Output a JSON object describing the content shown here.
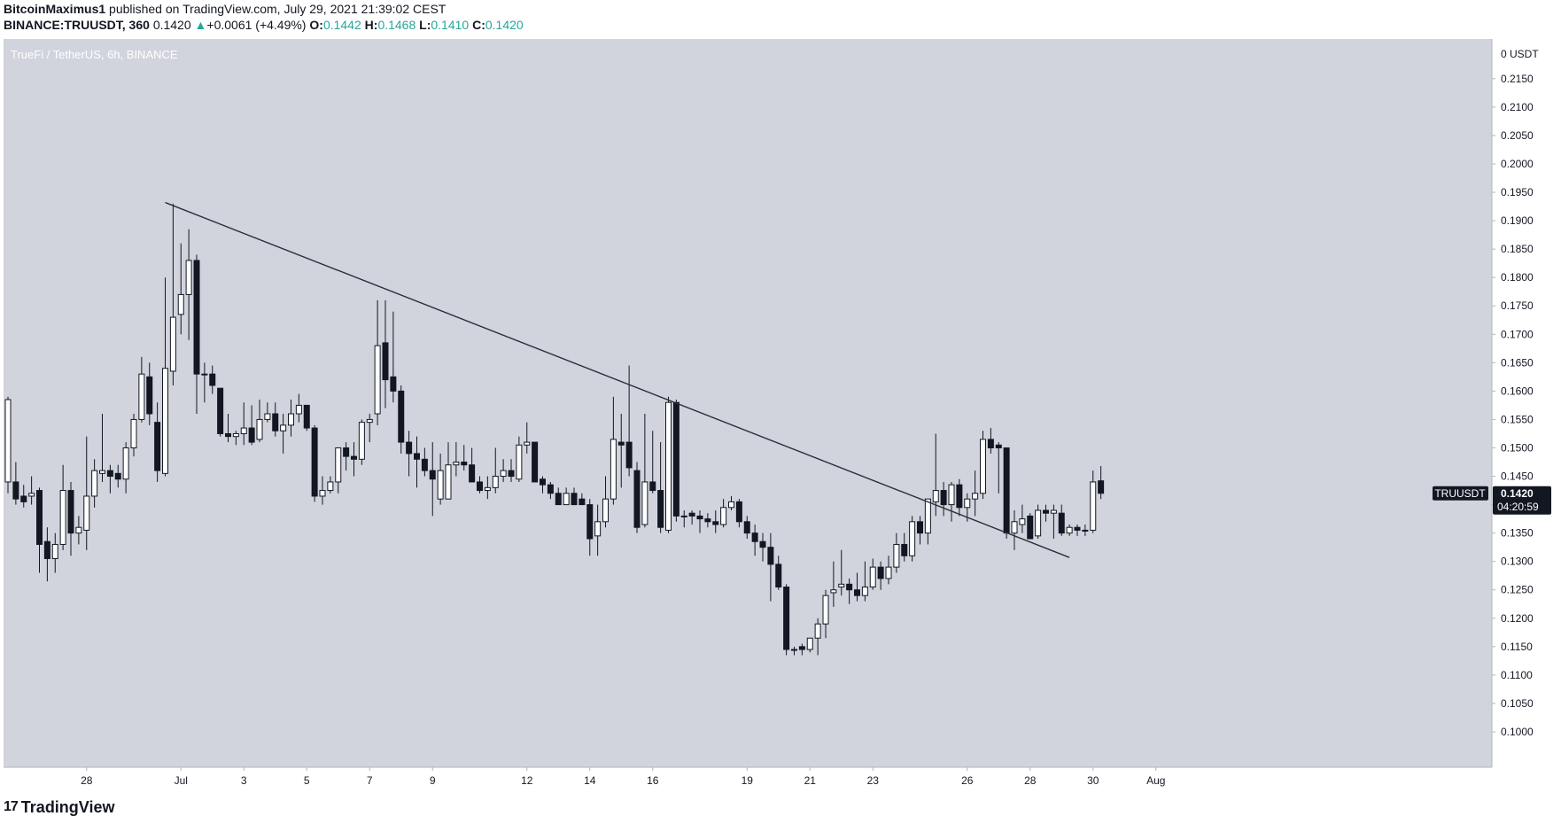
{
  "header": {
    "author": "BitcoinMaximus1",
    "published": "published on TradingView.com, July 29, 2021 21:39:02 CEST"
  },
  "symbol_line": {
    "symbol": "BINANCE:TRUUSDT, 360",
    "last": "0.1420",
    "change_arrow": "▲",
    "change": "+0.0061 (+4.49%)",
    "open_label": "O:",
    "open": "0.1442",
    "high_label": "H:",
    "high": "0.1468",
    "low_label": "L:",
    "low": "0.1410",
    "close_label": "C:",
    "close": "0.1420"
  },
  "brand": {
    "logo_text": "17",
    "name": "TradingView"
  },
  "colors": {
    "background": "#d1d4dc",
    "up_body": "#ffffff",
    "down_body": "#131722",
    "wick": "#131722",
    "trendline": "#2a2e39",
    "up_text": "#26a69a",
    "price_tag": "#131722"
  },
  "chart_data": {
    "type": "candlestick",
    "title": "TrueFi / TetherUS, 6h, BINANCE",
    "price_axis_header": "0 USDT",
    "ylim": [
      0.0975,
      0.2195
    ],
    "y_ticks": [
      "0.2150",
      "0.2100",
      "0.2050",
      "0.2000",
      "0.1950",
      "0.1900",
      "0.1850",
      "0.1800",
      "0.1750",
      "0.1700",
      "0.1650",
      "0.1600",
      "0.1550",
      "0.1500",
      "0.1450",
      "0.1400",
      "0.1350",
      "0.1300",
      "0.1250",
      "0.1200",
      "0.1150",
      "0.1100",
      "0.1050",
      "0.1000"
    ],
    "x_ticks": [
      {
        "label": "28",
        "date": "2021-06-28"
      },
      {
        "label": "Jul",
        "date": "2021-07-01"
      },
      {
        "label": "3",
        "date": "2021-07-03"
      },
      {
        "label": "5",
        "date": "2021-07-05"
      },
      {
        "label": "7",
        "date": "2021-07-07"
      },
      {
        "label": "9",
        "date": "2021-07-09"
      },
      {
        "label": "12",
        "date": "2021-07-12"
      },
      {
        "label": "14",
        "date": "2021-07-14"
      },
      {
        "label": "16",
        "date": "2021-07-16"
      },
      {
        "label": "19",
        "date": "2021-07-19"
      },
      {
        "label": "21",
        "date": "2021-07-21"
      },
      {
        "label": "23",
        "date": "2021-07-23"
      },
      {
        "label": "26",
        "date": "2021-07-26"
      },
      {
        "label": "28",
        "date": "2021-07-28"
      },
      {
        "label": "30",
        "date": "2021-07-30"
      },
      {
        "label": "Aug",
        "date": "2021-08-01"
      }
    ],
    "last_price": {
      "symbol": "TRUUSDT",
      "value": "0.1420",
      "countdown": "04:20:59"
    },
    "trendline": [
      {
        "x": "2021-06-30 12:00",
        "y": 0.1932
      },
      {
        "x": "2021-07-29 06:00",
        "y": 0.1307
      }
    ],
    "candles": [
      {
        "o": 0.144,
        "h": 0.159,
        "l": 0.142,
        "c": 0.1585
      },
      {
        "o": 0.144,
        "h": 0.1475,
        "l": 0.14,
        "c": 0.141
      },
      {
        "o": 0.1415,
        "h": 0.1435,
        "l": 0.1395,
        "c": 0.1405
      },
      {
        "o": 0.1415,
        "h": 0.145,
        "l": 0.14,
        "c": 0.142
      },
      {
        "o": 0.1425,
        "h": 0.143,
        "l": 0.128,
        "c": 0.133
      },
      {
        "o": 0.1335,
        "h": 0.136,
        "l": 0.1265,
        "c": 0.1305
      },
      {
        "o": 0.1305,
        "h": 0.135,
        "l": 0.128,
        "c": 0.133
      },
      {
        "o": 0.133,
        "h": 0.147,
        "l": 0.132,
        "c": 0.1425
      },
      {
        "o": 0.1425,
        "h": 0.144,
        "l": 0.131,
        "c": 0.135
      },
      {
        "o": 0.135,
        "h": 0.138,
        "l": 0.133,
        "c": 0.136
      },
      {
        "o": 0.1355,
        "h": 0.152,
        "l": 0.132,
        "c": 0.1415
      },
      {
        "o": 0.1415,
        "h": 0.148,
        "l": 0.1395,
        "c": 0.146
      },
      {
        "o": 0.1455,
        "h": 0.156,
        "l": 0.144,
        "c": 0.146
      },
      {
        "o": 0.146,
        "h": 0.147,
        "l": 0.142,
        "c": 0.145
      },
      {
        "o": 0.1455,
        "h": 0.147,
        "l": 0.143,
        "c": 0.1445
      },
      {
        "o": 0.1445,
        "h": 0.151,
        "l": 0.142,
        "c": 0.15
      },
      {
        "o": 0.15,
        "h": 0.156,
        "l": 0.1485,
        "c": 0.155
      },
      {
        "o": 0.155,
        "h": 0.166,
        "l": 0.1545,
        "c": 0.163
      },
      {
        "o": 0.1625,
        "h": 0.165,
        "l": 0.154,
        "c": 0.156
      },
      {
        "o": 0.1545,
        "h": 0.158,
        "l": 0.144,
        "c": 0.146
      },
      {
        "o": 0.1455,
        "h": 0.18,
        "l": 0.145,
        "c": 0.164
      },
      {
        "o": 0.1635,
        "h": 0.193,
        "l": 0.161,
        "c": 0.173
      },
      {
        "o": 0.1735,
        "h": 0.186,
        "l": 0.17,
        "c": 0.177
      },
      {
        "o": 0.177,
        "h": 0.1885,
        "l": 0.169,
        "c": 0.183
      },
      {
        "o": 0.183,
        "h": 0.184,
        "l": 0.156,
        "c": 0.163
      },
      {
        "o": 0.163,
        "h": 0.165,
        "l": 0.158,
        "c": 0.163
      },
      {
        "o": 0.163,
        "h": 0.1645,
        "l": 0.1595,
        "c": 0.161
      },
      {
        "o": 0.1605,
        "h": 0.1605,
        "l": 0.152,
        "c": 0.1525
      },
      {
        "o": 0.1525,
        "h": 0.156,
        "l": 0.151,
        "c": 0.152
      },
      {
        "o": 0.152,
        "h": 0.153,
        "l": 0.1505,
        "c": 0.1525
      },
      {
        "o": 0.1525,
        "h": 0.158,
        "l": 0.1505,
        "c": 0.1535
      },
      {
        "o": 0.1535,
        "h": 0.1575,
        "l": 0.1505,
        "c": 0.151
      },
      {
        "o": 0.1515,
        "h": 0.1585,
        "l": 0.151,
        "c": 0.155
      },
      {
        "o": 0.155,
        "h": 0.158,
        "l": 0.1545,
        "c": 0.156
      },
      {
        "o": 0.156,
        "h": 0.158,
        "l": 0.152,
        "c": 0.153
      },
      {
        "o": 0.153,
        "h": 0.156,
        "l": 0.149,
        "c": 0.154
      },
      {
        "o": 0.154,
        "h": 0.1585,
        "l": 0.152,
        "c": 0.156
      },
      {
        "o": 0.156,
        "h": 0.1595,
        "l": 0.1545,
        "c": 0.1575
      },
      {
        "o": 0.1575,
        "h": 0.1575,
        "l": 0.153,
        "c": 0.1535
      },
      {
        "o": 0.1535,
        "h": 0.154,
        "l": 0.1405,
        "c": 0.1415
      },
      {
        "o": 0.1415,
        "h": 0.145,
        "l": 0.14,
        "c": 0.1425
      },
      {
        "o": 0.1425,
        "h": 0.145,
        "l": 0.142,
        "c": 0.144
      },
      {
        "o": 0.144,
        "h": 0.15,
        "l": 0.142,
        "c": 0.15
      },
      {
        "o": 0.15,
        "h": 0.151,
        "l": 0.146,
        "c": 0.1485
      },
      {
        "o": 0.1485,
        "h": 0.151,
        "l": 0.145,
        "c": 0.148
      },
      {
        "o": 0.148,
        "h": 0.155,
        "l": 0.147,
        "c": 0.1545
      },
      {
        "o": 0.1545,
        "h": 0.156,
        "l": 0.151,
        "c": 0.155
      },
      {
        "o": 0.156,
        "h": 0.176,
        "l": 0.154,
        "c": 0.168
      },
      {
        "o": 0.1685,
        "h": 0.176,
        "l": 0.157,
        "c": 0.162
      },
      {
        "o": 0.1625,
        "h": 0.174,
        "l": 0.158,
        "c": 0.16
      },
      {
        "o": 0.16,
        "h": 0.161,
        "l": 0.149,
        "c": 0.151
      },
      {
        "o": 0.151,
        "h": 0.153,
        "l": 0.145,
        "c": 0.149
      },
      {
        "o": 0.149,
        "h": 0.152,
        "l": 0.143,
        "c": 0.148
      },
      {
        "o": 0.148,
        "h": 0.15,
        "l": 0.145,
        "c": 0.146
      },
      {
        "o": 0.146,
        "h": 0.151,
        "l": 0.138,
        "c": 0.1445
      },
      {
        "o": 0.141,
        "h": 0.149,
        "l": 0.14,
        "c": 0.146
      },
      {
        "o": 0.141,
        "h": 0.151,
        "l": 0.141,
        "c": 0.147
      },
      {
        "o": 0.147,
        "h": 0.151,
        "l": 0.145,
        "c": 0.1475
      },
      {
        "o": 0.1475,
        "h": 0.1505,
        "l": 0.146,
        "c": 0.147
      },
      {
        "o": 0.147,
        "h": 0.15,
        "l": 0.144,
        "c": 0.144
      },
      {
        "o": 0.144,
        "h": 0.145,
        "l": 0.142,
        "c": 0.1425
      },
      {
        "o": 0.1425,
        "h": 0.145,
        "l": 0.141,
        "c": 0.143
      },
      {
        "o": 0.143,
        "h": 0.15,
        "l": 0.142,
        "c": 0.145
      },
      {
        "o": 0.145,
        "h": 0.148,
        "l": 0.144,
        "c": 0.146
      },
      {
        "o": 0.146,
        "h": 0.148,
        "l": 0.144,
        "c": 0.145
      },
      {
        "o": 0.1445,
        "h": 0.152,
        "l": 0.144,
        "c": 0.1505
      },
      {
        "o": 0.1505,
        "h": 0.1545,
        "l": 0.149,
        "c": 0.151
      },
      {
        "o": 0.151,
        "h": 0.151,
        "l": 0.144,
        "c": 0.144
      },
      {
        "o": 0.1445,
        "h": 0.145,
        "l": 0.142,
        "c": 0.1435
      },
      {
        "o": 0.1435,
        "h": 0.144,
        "l": 0.141,
        "c": 0.142
      },
      {
        "o": 0.142,
        "h": 0.143,
        "l": 0.14,
        "c": 0.14
      },
      {
        "o": 0.14,
        "h": 0.143,
        "l": 0.14,
        "c": 0.142
      },
      {
        "o": 0.142,
        "h": 0.143,
        "l": 0.14,
        "c": 0.14
      },
      {
        "o": 0.141,
        "h": 0.142,
        "l": 0.14,
        "c": 0.14
      },
      {
        "o": 0.14,
        "h": 0.141,
        "l": 0.131,
        "c": 0.134
      },
      {
        "o": 0.1345,
        "h": 0.14,
        "l": 0.131,
        "c": 0.137
      },
      {
        "o": 0.137,
        "h": 0.145,
        "l": 0.136,
        "c": 0.141
      },
      {
        "o": 0.141,
        "h": 0.159,
        "l": 0.14,
        "c": 0.1515
      },
      {
        "o": 0.151,
        "h": 0.156,
        "l": 0.143,
        "c": 0.1505
      },
      {
        "o": 0.151,
        "h": 0.1645,
        "l": 0.145,
        "c": 0.1465
      },
      {
        "o": 0.146,
        "h": 0.1475,
        "l": 0.135,
        "c": 0.136
      },
      {
        "o": 0.1365,
        "h": 0.156,
        "l": 0.136,
        "c": 0.144
      },
      {
        "o": 0.144,
        "h": 0.153,
        "l": 0.142,
        "c": 0.1425
      },
      {
        "o": 0.1425,
        "h": 0.151,
        "l": 0.135,
        "c": 0.136
      },
      {
        "o": 0.1355,
        "h": 0.159,
        "l": 0.135,
        "c": 0.158
      },
      {
        "o": 0.158,
        "h": 0.1585,
        "l": 0.137,
        "c": 0.138
      },
      {
        "o": 0.138,
        "h": 0.139,
        "l": 0.136,
        "c": 0.138
      },
      {
        "o": 0.1385,
        "h": 0.139,
        "l": 0.1365,
        "c": 0.138
      },
      {
        "o": 0.138,
        "h": 0.139,
        "l": 0.135,
        "c": 0.1375
      },
      {
        "o": 0.1375,
        "h": 0.1385,
        "l": 0.136,
        "c": 0.137
      },
      {
        "o": 0.137,
        "h": 0.139,
        "l": 0.135,
        "c": 0.1365
      },
      {
        "o": 0.1365,
        "h": 0.141,
        "l": 0.136,
        "c": 0.1395
      },
      {
        "o": 0.1395,
        "h": 0.1415,
        "l": 0.139,
        "c": 0.1405
      },
      {
        "o": 0.1405,
        "h": 0.141,
        "l": 0.136,
        "c": 0.137
      },
      {
        "o": 0.137,
        "h": 0.138,
        "l": 0.134,
        "c": 0.135
      },
      {
        "o": 0.135,
        "h": 0.1365,
        "l": 0.131,
        "c": 0.1335
      },
      {
        "o": 0.1335,
        "h": 0.135,
        "l": 0.13,
        "c": 0.1325
      },
      {
        "o": 0.1325,
        "h": 0.135,
        "l": 0.123,
        "c": 0.1295
      },
      {
        "o": 0.1295,
        "h": 0.131,
        "l": 0.125,
        "c": 0.1255
      },
      {
        "o": 0.1255,
        "h": 0.126,
        "l": 0.1135,
        "c": 0.1145
      },
      {
        "o": 0.1145,
        "h": 0.115,
        "l": 0.1135,
        "c": 0.1145
      },
      {
        "o": 0.115,
        "h": 0.1155,
        "l": 0.1135,
        "c": 0.1145
      },
      {
        "o": 0.1145,
        "h": 0.1165,
        "l": 0.114,
        "c": 0.1165
      },
      {
        "o": 0.1165,
        "h": 0.12,
        "l": 0.1135,
        "c": 0.119
      },
      {
        "o": 0.119,
        "h": 0.125,
        "l": 0.1165,
        "c": 0.124
      },
      {
        "o": 0.1245,
        "h": 0.13,
        "l": 0.122,
        "c": 0.125
      },
      {
        "o": 0.1255,
        "h": 0.132,
        "l": 0.124,
        "c": 0.126
      },
      {
        "o": 0.126,
        "h": 0.127,
        "l": 0.1225,
        "c": 0.125
      },
      {
        "o": 0.125,
        "h": 0.128,
        "l": 0.123,
        "c": 0.124
      },
      {
        "o": 0.124,
        "h": 0.13,
        "l": 0.123,
        "c": 0.1255
      },
      {
        "o": 0.1255,
        "h": 0.1305,
        "l": 0.125,
        "c": 0.129
      },
      {
        "o": 0.129,
        "h": 0.13,
        "l": 0.125,
        "c": 0.127
      },
      {
        "o": 0.127,
        "h": 0.131,
        "l": 0.126,
        "c": 0.129
      },
      {
        "o": 0.129,
        "h": 0.135,
        "l": 0.128,
        "c": 0.133
      },
      {
        "o": 0.133,
        "h": 0.135,
        "l": 0.13,
        "c": 0.131
      },
      {
        "o": 0.131,
        "h": 0.138,
        "l": 0.13,
        "c": 0.137
      },
      {
        "o": 0.137,
        "h": 0.138,
        "l": 0.133,
        "c": 0.135
      },
      {
        "o": 0.135,
        "h": 0.141,
        "l": 0.133,
        "c": 0.141
      },
      {
        "o": 0.1405,
        "h": 0.1525,
        "l": 0.138,
        "c": 0.1425
      },
      {
        "o": 0.1425,
        "h": 0.144,
        "l": 0.138,
        "c": 0.14
      },
      {
        "o": 0.14,
        "h": 0.144,
        "l": 0.137,
        "c": 0.1435
      },
      {
        "o": 0.1435,
        "h": 0.1445,
        "l": 0.138,
        "c": 0.1395
      },
      {
        "o": 0.1395,
        "h": 0.142,
        "l": 0.137,
        "c": 0.141
      },
      {
        "o": 0.141,
        "h": 0.146,
        "l": 0.138,
        "c": 0.142
      },
      {
        "o": 0.142,
        "h": 0.153,
        "l": 0.141,
        "c": 0.1515
      },
      {
        "o": 0.1515,
        "h": 0.1535,
        "l": 0.149,
        "c": 0.15
      },
      {
        "o": 0.1505,
        "h": 0.151,
        "l": 0.142,
        "c": 0.15
      },
      {
        "o": 0.15,
        "h": 0.15,
        "l": 0.134,
        "c": 0.135
      },
      {
        "o": 0.135,
        "h": 0.139,
        "l": 0.132,
        "c": 0.137
      },
      {
        "o": 0.1365,
        "h": 0.14,
        "l": 0.135,
        "c": 0.1375
      },
      {
        "o": 0.138,
        "h": 0.1385,
        "l": 0.134,
        "c": 0.134
      },
      {
        "o": 0.1345,
        "h": 0.14,
        "l": 0.134,
        "c": 0.139
      },
      {
        "o": 0.139,
        "h": 0.14,
        "l": 0.137,
        "c": 0.1385
      },
      {
        "o": 0.1385,
        "h": 0.14,
        "l": 0.134,
        "c": 0.139
      },
      {
        "o": 0.1385,
        "h": 0.14,
        "l": 0.1345,
        "c": 0.135
      },
      {
        "o": 0.135,
        "h": 0.1365,
        "l": 0.1345,
        "c": 0.136
      },
      {
        "o": 0.136,
        "h": 0.1365,
        "l": 0.1345,
        "c": 0.1355
      },
      {
        "o": 0.1355,
        "h": 0.1365,
        "l": 0.1345,
        "c": 0.1355
      },
      {
        "o": 0.1355,
        "h": 0.146,
        "l": 0.135,
        "c": 0.144
      },
      {
        "o": 0.1442,
        "h": 0.1468,
        "l": 0.141,
        "c": 0.142
      }
    ]
  }
}
